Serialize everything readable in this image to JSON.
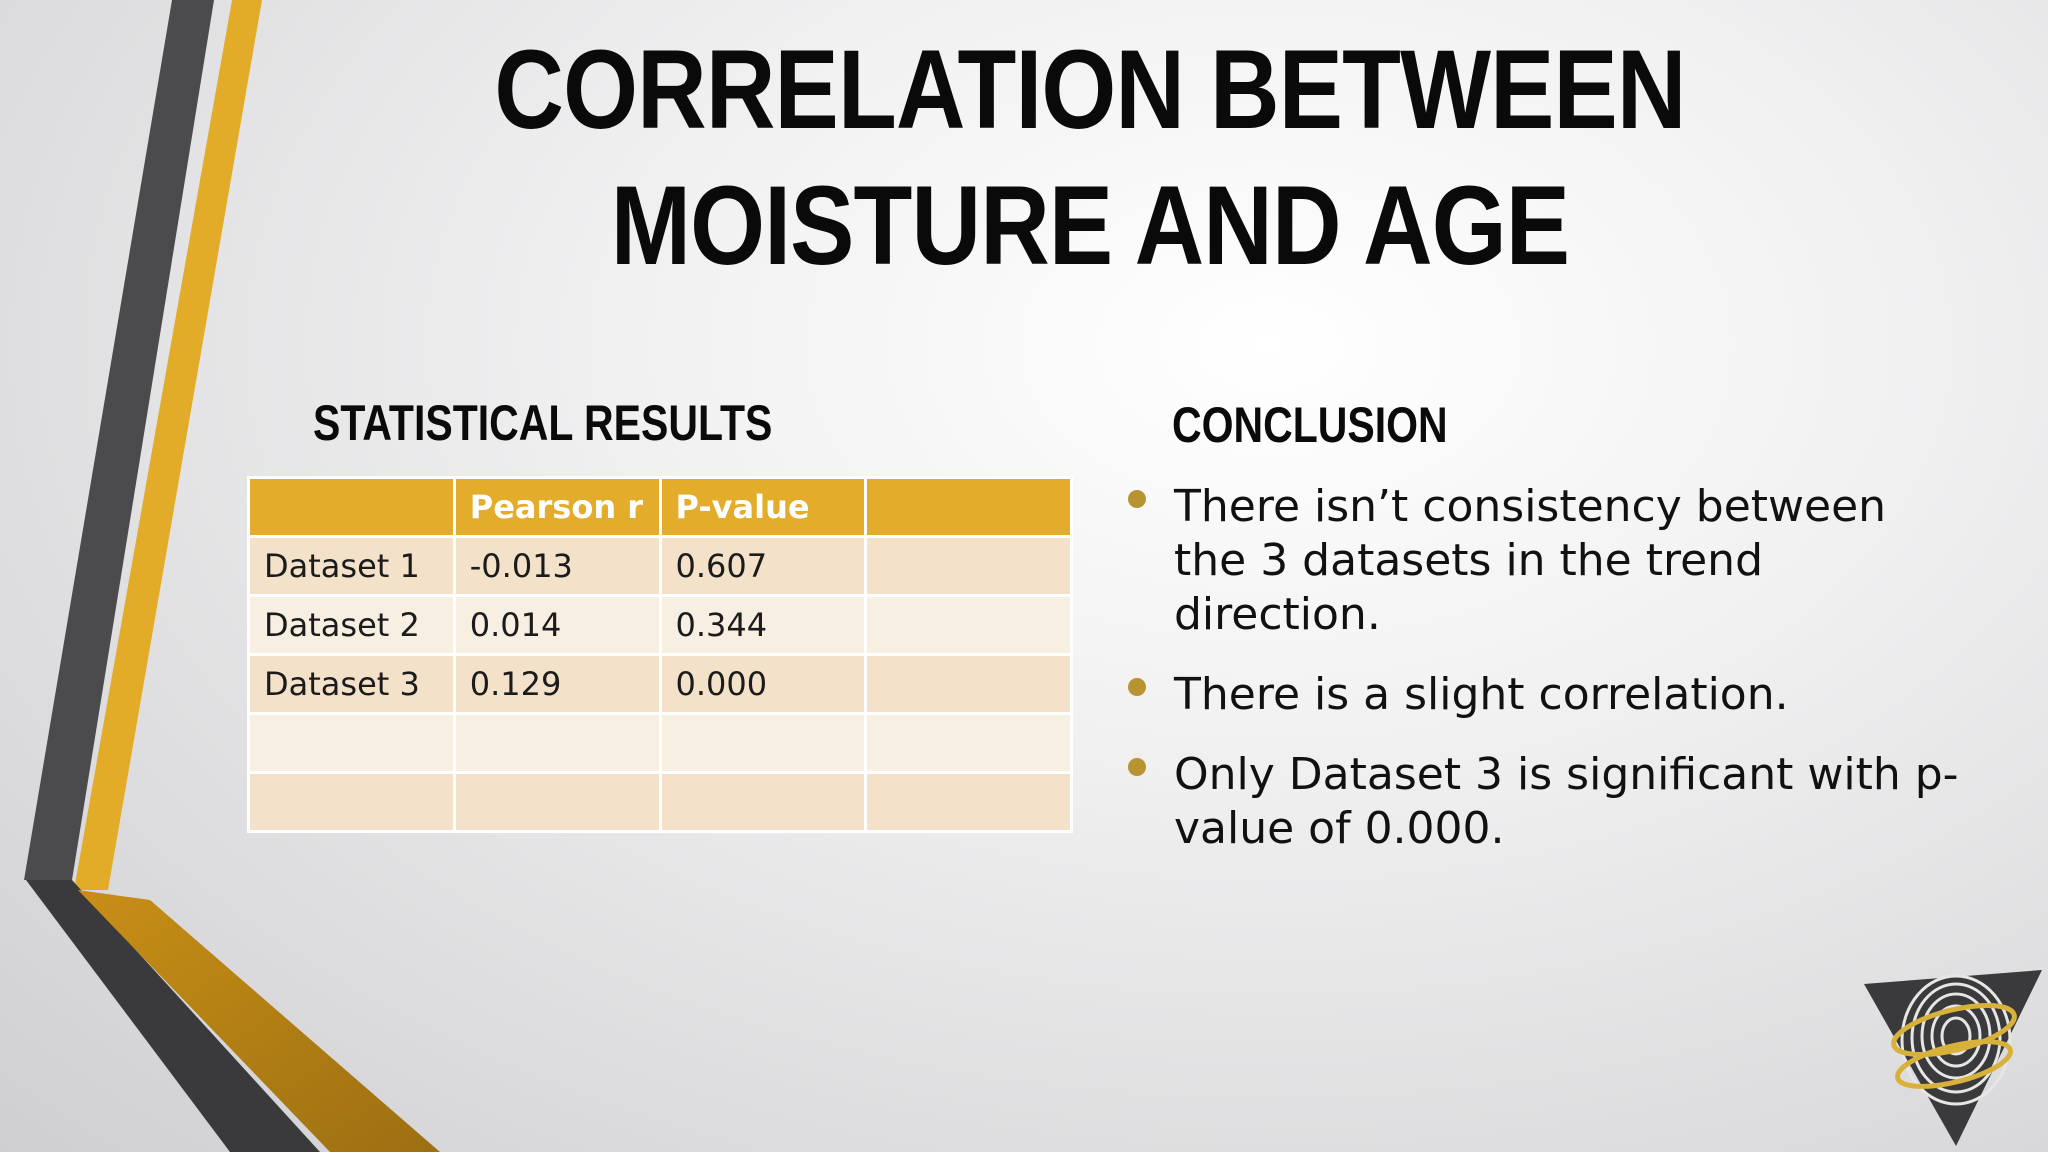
{
  "slide": {
    "title": "CORRELATION BETWEEN MOISTURE AND AGE",
    "colors": {
      "accent_gold": "#e3ac2a",
      "dark_gray": "#4a4a4c",
      "bullet_gold": "#b89431",
      "row_odd": "#f3e2c9",
      "row_even": "#f8efe3"
    }
  },
  "statistics": {
    "heading": "STATISTICAL RESULTS",
    "table": {
      "columns": [
        "",
        "Pearson r",
        "P-value",
        ""
      ],
      "rows": [
        [
          "Dataset 1",
          "-0.013",
          "0.607",
          ""
        ],
        [
          "Dataset 2",
          "0.014",
          "0.344",
          ""
        ],
        [
          "Dataset 3",
          "0.129",
          "0.000",
          ""
        ],
        [
          "",
          "",
          "",
          ""
        ],
        [
          "",
          "",
          "",
          ""
        ]
      ]
    }
  },
  "conclusion": {
    "heading": "CONCLUSION",
    "bullets": [
      "There isn’t consistency between the 3 datasets in the trend direction.",
      "There is a slight correlation.",
      "Only Dataset 3 is significant with p-value of 0.000."
    ]
  },
  "logo": {
    "icon": "fingerprint-triangle-logo-icon"
  }
}
